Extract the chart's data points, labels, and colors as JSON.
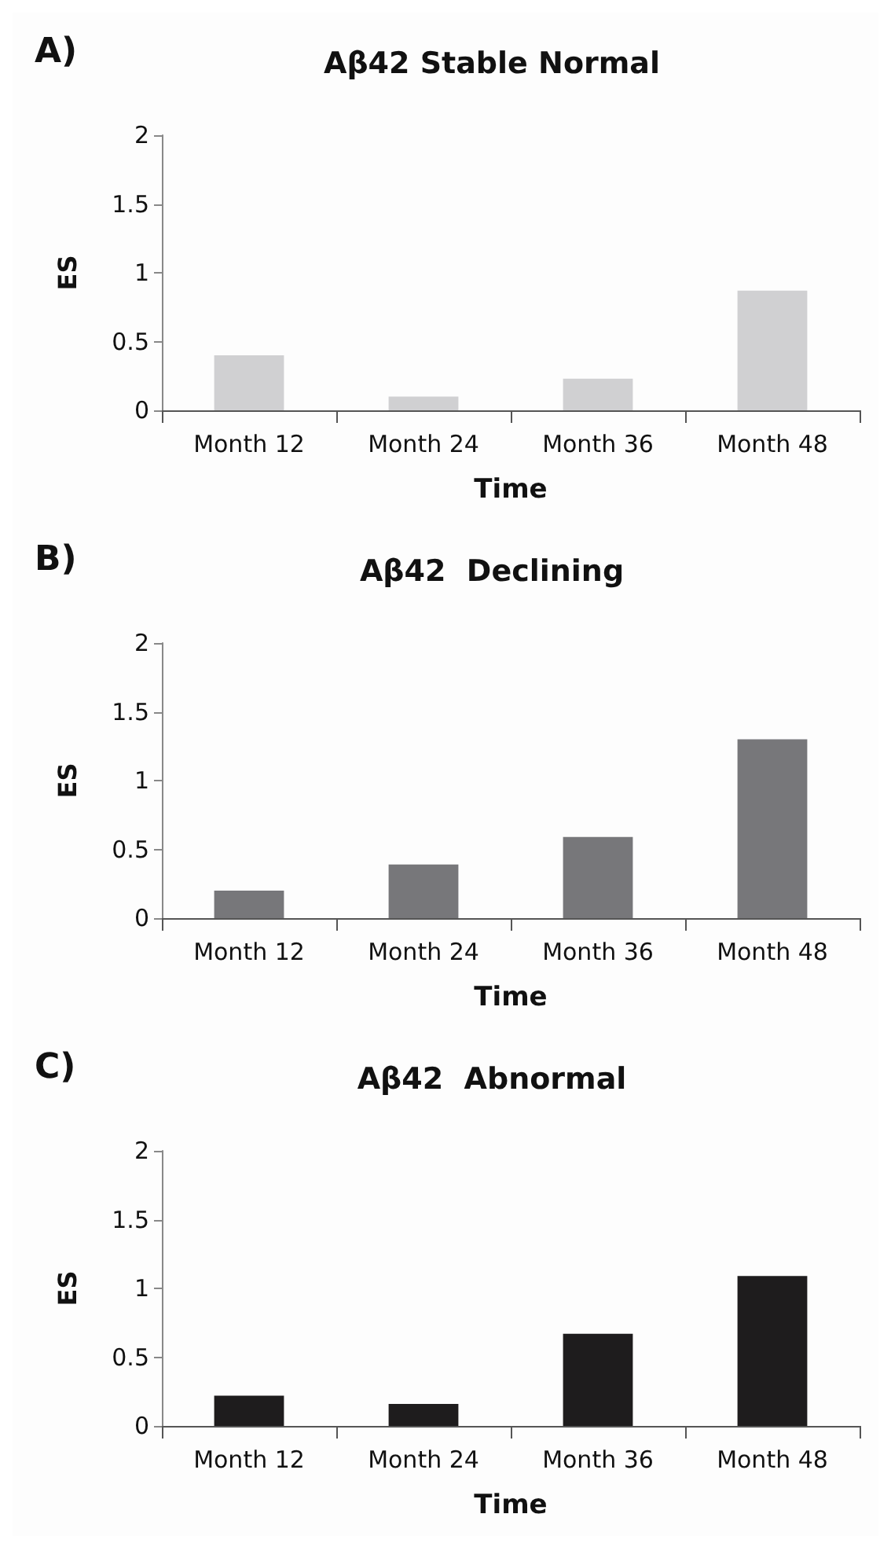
{
  "chart_data": [
    {
      "type": "bar",
      "title": "Aβ42 Stable Normal",
      "annotations": [
        "A)"
      ],
      "xlabel": "Time",
      "ylabel": "ES",
      "categories": [
        "Month 12",
        "Month 24",
        "Month 36",
        "Month 48"
      ],
      "values": [
        0.4,
        0.1,
        0.23,
        0.87
      ],
      "color": "#d0d0d2",
      "ylim": [
        0,
        2
      ],
      "yticks": [
        0,
        0.5,
        1,
        1.5,
        2
      ],
      "grid": false
    },
    {
      "type": "bar",
      "title": "Aβ42  Declining",
      "annotations": [
        "B)"
      ],
      "xlabel": "Time",
      "ylabel": "ES",
      "categories": [
        "Month 12",
        "Month 24",
        "Month 36",
        "Month 48"
      ],
      "values": [
        0.2,
        0.39,
        0.59,
        1.3
      ],
      "color": "#77777a",
      "ylim": [
        0,
        2
      ],
      "yticks": [
        0,
        0.5,
        1,
        1.5,
        2
      ],
      "grid": false
    },
    {
      "type": "bar",
      "title": "Aβ42  Abnormal",
      "annotations": [
        "C)"
      ],
      "xlabel": "Time",
      "ylabel": "ES",
      "categories": [
        "Month 12",
        "Month 24",
        "Month 36",
        "Month 48"
      ],
      "values": [
        0.22,
        0.16,
        0.67,
        1.09
      ],
      "color": "#1e1c1d",
      "ylim": [
        0,
        2
      ],
      "yticks": [
        0,
        0.5,
        1,
        1.5,
        2
      ],
      "grid": false
    }
  ]
}
